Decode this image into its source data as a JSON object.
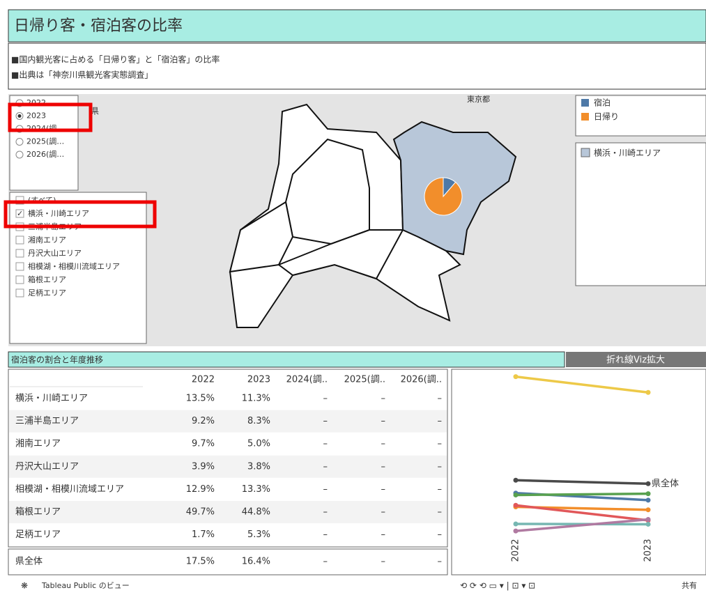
{
  "header": {
    "title": "日帰り客・宿泊客の比率",
    "description": [
      "■国内観光客に占める「日帰り客」と「宿泊客」の比率",
      "■出典は「神奈川県観光客実態調査」"
    ]
  },
  "year_filter": {
    "options": [
      {
        "label": "2022",
        "checked": false
      },
      {
        "label": "2023",
        "checked": true
      },
      {
        "label": "2024(調…",
        "checked": false
      },
      {
        "label": "2025(調…",
        "checked": false
      },
      {
        "label": "2026(調…",
        "checked": false
      }
    ]
  },
  "area_filter": {
    "options": [
      {
        "label": "(すべて)",
        "checked": false
      },
      {
        "label": "横浜・川崎エリア",
        "checked": true
      },
      {
        "label": "三浦半島エリア",
        "checked": false
      },
      {
        "label": "湘南エリア",
        "checked": false
      },
      {
        "label": "丹沢大山エリア",
        "checked": false
      },
      {
        "label": "相模湖・相模川流域エリア",
        "checked": false
      },
      {
        "label": "箱根エリア",
        "checked": false
      },
      {
        "label": "足柄エリア",
        "checked": false
      }
    ]
  },
  "map": {
    "labels": [
      "東京都",
      "県"
    ],
    "area_legend": "横浜・川崎エリア",
    "area_color": "#b8c7d9"
  },
  "chart_data": {
    "type": "pie",
    "series": [
      {
        "name": "宿泊",
        "color": "#4e79a7"
      },
      {
        "name": "日帰り",
        "color": "#f28e2b"
      }
    ],
    "values": [
      11.3,
      88.7
    ]
  },
  "table": {
    "title": "宿泊客の割合と年度推移",
    "button": "折れ線Viz拡大",
    "columns": [
      "2022",
      "2023",
      "2024(調..",
      "2025(調..",
      "2026(調.."
    ],
    "rows": [
      [
        "横浜・川崎エリア",
        "13.5%",
        "11.3%",
        "–",
        "–",
        "–"
      ],
      [
        "三浦半島エリア",
        "9.2%",
        "8.3%",
        "–",
        "–",
        "–"
      ],
      [
        "湘南エリア",
        "9.7%",
        "5.0%",
        "–",
        "–",
        "–"
      ],
      [
        "丹沢大山エリア",
        "3.9%",
        "3.8%",
        "–",
        "–",
        "–"
      ],
      [
        "相模湖・相模川流域エリア",
        "12.9%",
        "13.3%",
        "–",
        "–",
        "–"
      ],
      [
        "箱根エリア",
        "49.7%",
        "44.8%",
        "–",
        "–",
        "–"
      ],
      [
        "足柄エリア",
        "1.7%",
        "5.3%",
        "–",
        "–",
        "–"
      ]
    ],
    "total": [
      "県全体",
      "17.5%",
      "16.4%",
      "–",
      "–",
      "–"
    ]
  },
  "line_chart": {
    "type": "line",
    "x": [
      "2022",
      "2023"
    ],
    "ylim": [
      0,
      52
    ],
    "label": "県全体",
    "series": [
      {
        "color": "#4e79a7",
        "values": [
          13.5,
          11.3
        ]
      },
      {
        "color": "#f28e2b",
        "values": [
          9.2,
          8.3
        ]
      },
      {
        "color": "#e15759",
        "values": [
          9.7,
          5.0
        ]
      },
      {
        "color": "#76b7b2",
        "values": [
          3.9,
          3.8
        ]
      },
      {
        "color": "#59a14f",
        "values": [
          12.9,
          13.3
        ]
      },
      {
        "color": "#edc948",
        "values": [
          49.7,
          44.8
        ]
      },
      {
        "color": "#b07aa1",
        "values": [
          1.7,
          5.3
        ]
      },
      {
        "color": "#4a4a4a",
        "values": [
          17.5,
          16.4
        ]
      }
    ]
  },
  "footer": {
    "left": "Tableau Public のビュー",
    "share": "共有"
  }
}
